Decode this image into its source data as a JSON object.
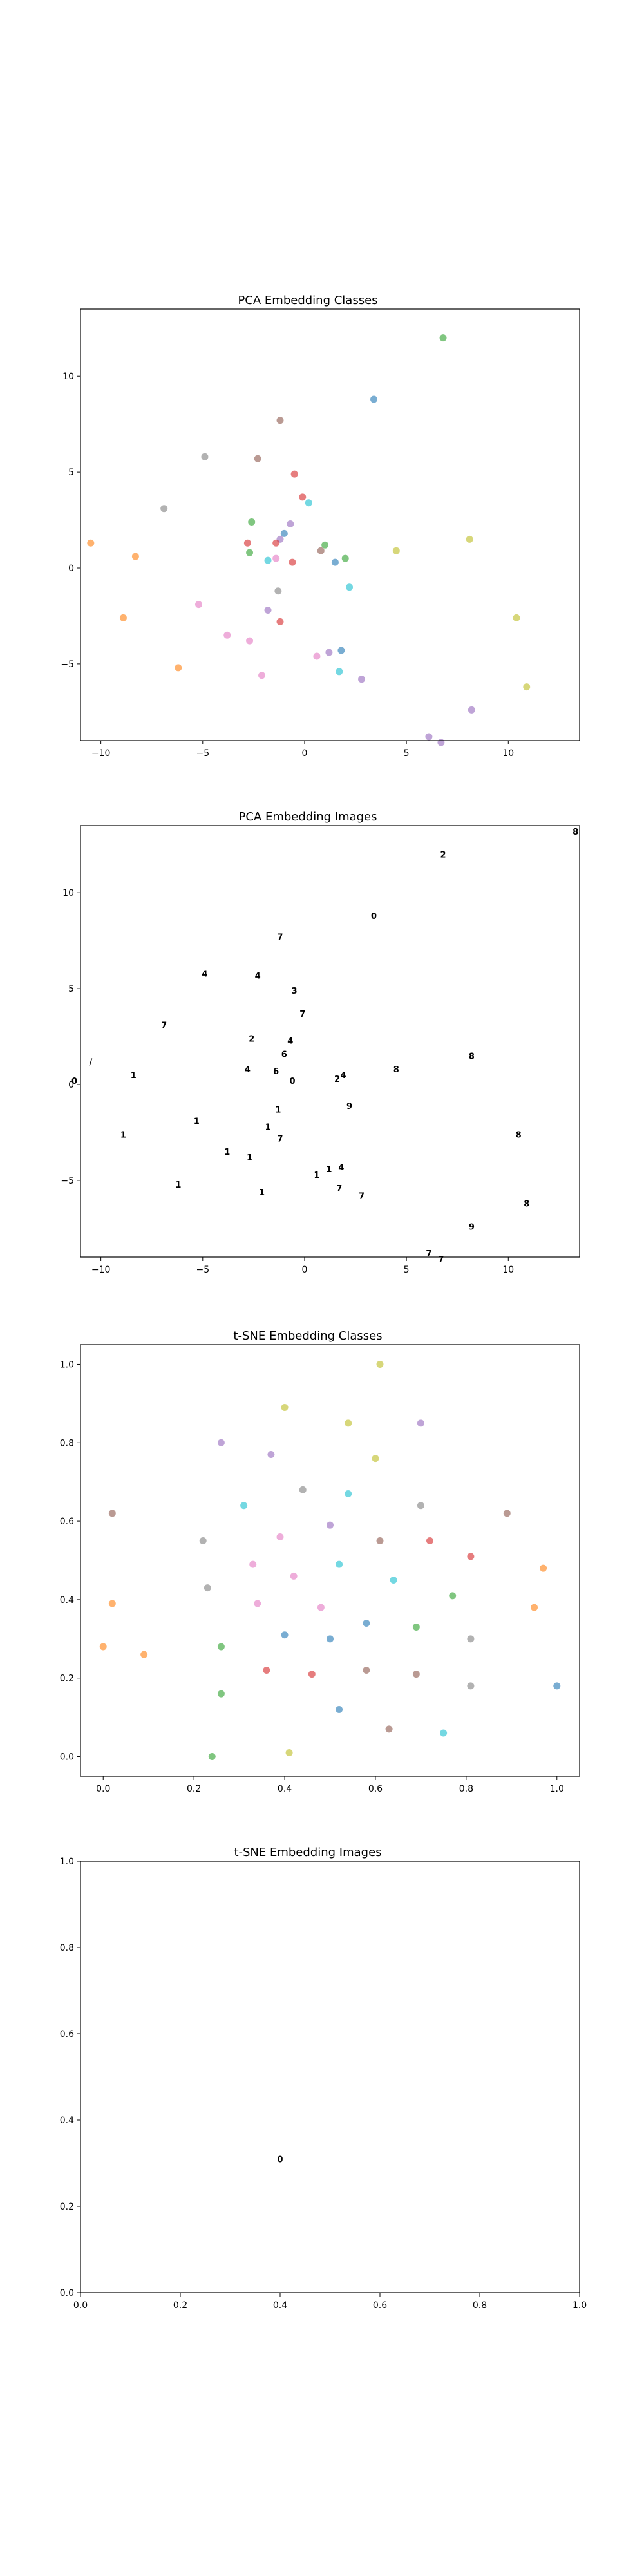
{
  "colors": {
    "blue": "#1f77b4",
    "orange": "#ff7f0e",
    "green": "#2ca02c",
    "red": "#d62728",
    "purple": "#9467bd",
    "brown": "#8c564b",
    "pink": "#e377c2",
    "gray": "#7f7f7f",
    "olive": "#bcbd22",
    "cyan": "#17becf"
  },
  "chart_data": [
    {
      "type": "scatter",
      "title": "PCA Embedding Classes",
      "xlim": [
        -11,
        13.5
      ],
      "ylim": [
        -9,
        13.5
      ],
      "xticks": [
        -10,
        -5,
        0,
        5,
        10
      ],
      "yticks": [
        -5,
        0,
        5,
        10
      ],
      "grid": false,
      "points": [
        {
          "x": 6.8,
          "y": 12.0,
          "c": "green"
        },
        {
          "x": 3.4,
          "y": 8.8,
          "c": "blue"
        },
        {
          "x": -1.2,
          "y": 7.7,
          "c": "brown"
        },
        {
          "x": -4.9,
          "y": 5.8,
          "c": "gray"
        },
        {
          "x": -2.3,
          "y": 5.7,
          "c": "brown"
        },
        {
          "x": -0.5,
          "y": 4.9,
          "c": "red"
        },
        {
          "x": -0.1,
          "y": 3.7,
          "c": "red"
        },
        {
          "x": 0.2,
          "y": 3.4,
          "c": "cyan"
        },
        {
          "x": -6.9,
          "y": 3.1,
          "c": "gray"
        },
        {
          "x": -0.7,
          "y": 2.3,
          "c": "purple"
        },
        {
          "x": -2.6,
          "y": 2.4,
          "c": "green"
        },
        {
          "x": -1.0,
          "y": 1.8,
          "c": "blue"
        },
        {
          "x": -1.2,
          "y": 1.5,
          "c": "purple"
        },
        {
          "x": -1.4,
          "y": 1.3,
          "c": "red"
        },
        {
          "x": -2.8,
          "y": 1.3,
          "c": "red"
        },
        {
          "x": 1.0,
          "y": 1.2,
          "c": "green"
        },
        {
          "x": -10.5,
          "y": 1.3,
          "c": "orange"
        },
        {
          "x": 8.1,
          "y": 1.5,
          "c": "olive"
        },
        {
          "x": 4.5,
          "y": 0.9,
          "c": "olive"
        },
        {
          "x": -2.7,
          "y": 0.8,
          "c": "green"
        },
        {
          "x": 0.8,
          "y": 0.9,
          "c": "brown"
        },
        {
          "x": -8.3,
          "y": 0.6,
          "c": "orange"
        },
        {
          "x": -1.8,
          "y": 0.4,
          "c": "cyan"
        },
        {
          "x": -0.6,
          "y": 0.3,
          "c": "red"
        },
        {
          "x": -1.4,
          "y": 0.5,
          "c": "pink"
        },
        {
          "x": 1.5,
          "y": 0.3,
          "c": "blue"
        },
        {
          "x": 2.0,
          "y": 0.5,
          "c": "green"
        },
        {
          "x": 2.2,
          "y": -1.0,
          "c": "cyan"
        },
        {
          "x": -1.3,
          "y": -1.2,
          "c": "gray"
        },
        {
          "x": -5.2,
          "y": -1.9,
          "c": "pink"
        },
        {
          "x": -1.8,
          "y": -2.2,
          "c": "purple"
        },
        {
          "x": -8.9,
          "y": -2.6,
          "c": "orange"
        },
        {
          "x": 10.4,
          "y": -2.6,
          "c": "olive"
        },
        {
          "x": -1.2,
          "y": -2.8,
          "c": "red"
        },
        {
          "x": -3.8,
          "y": -3.5,
          "c": "pink"
        },
        {
          "x": -2.7,
          "y": -3.8,
          "c": "pink"
        },
        {
          "x": 1.8,
          "y": -4.3,
          "c": "blue"
        },
        {
          "x": 1.2,
          "y": -4.4,
          "c": "purple"
        },
        {
          "x": 0.6,
          "y": -4.6,
          "c": "pink"
        },
        {
          "x": -6.2,
          "y": -5.2,
          "c": "orange"
        },
        {
          "x": 1.7,
          "y": -5.4,
          "c": "cyan"
        },
        {
          "x": -2.1,
          "y": -5.6,
          "c": "pink"
        },
        {
          "x": 2.8,
          "y": -5.8,
          "c": "purple"
        },
        {
          "x": 10.9,
          "y": -6.2,
          "c": "olive"
        },
        {
          "x": 8.2,
          "y": -7.4,
          "c": "purple"
        },
        {
          "x": 6.1,
          "y": -8.8,
          "c": "purple"
        },
        {
          "x": 6.7,
          "y": -9.1,
          "c": "purple"
        }
      ]
    },
    {
      "type": "scatter",
      "title": "PCA Embedding Images",
      "xlim": [
        -11,
        13.5
      ],
      "ylim": [
        -9,
        13.5
      ],
      "xticks": [
        -10,
        -5,
        0,
        5,
        10
      ],
      "yticks": [
        -5,
        0,
        5,
        10
      ],
      "grid": false,
      "points": [
        {
          "x": 6.8,
          "y": 12.0,
          "d": "2"
        },
        {
          "x": 3.4,
          "y": 8.8,
          "d": "0"
        },
        {
          "x": -1.2,
          "y": 7.7,
          "d": "7"
        },
        {
          "x": -4.9,
          "y": 5.8,
          "d": "4"
        },
        {
          "x": -2.3,
          "y": 5.7,
          "d": "4"
        },
        {
          "x": -0.5,
          "y": 4.9,
          "d": "3"
        },
        {
          "x": -0.1,
          "y": 3.7,
          "d": "7"
        },
        {
          "x": -6.9,
          "y": 3.1,
          "d": "7"
        },
        {
          "x": -2.6,
          "y": 2.4,
          "d": "2"
        },
        {
          "x": -0.7,
          "y": 2.3,
          "d": "4"
        },
        {
          "x": -1.0,
          "y": 1.6,
          "d": "6"
        },
        {
          "x": 8.2,
          "y": 1.5,
          "d": "8"
        },
        {
          "x": -10.5,
          "y": 1.2,
          "d": "/"
        },
        {
          "x": 4.5,
          "y": 0.8,
          "d": "8"
        },
        {
          "x": -2.8,
          "y": 0.8,
          "d": "4"
        },
        {
          "x": -1.4,
          "y": 0.7,
          "d": "6"
        },
        {
          "x": -8.4,
          "y": 0.5,
          "d": "1"
        },
        {
          "x": 1.9,
          "y": 0.5,
          "d": "4"
        },
        {
          "x": -0.6,
          "y": 0.2,
          "d": "0"
        },
        {
          "x": 1.6,
          "y": 0.3,
          "d": "2"
        },
        {
          "x": 13.3,
          "y": 13.2,
          "d": "8"
        },
        {
          "x": -11.3,
          "y": 0.2,
          "d": "0"
        },
        {
          "x": 2.2,
          "y": -1.1,
          "d": "9"
        },
        {
          "x": -1.3,
          "y": -1.3,
          "d": "1"
        },
        {
          "x": -5.3,
          "y": -1.9,
          "d": "1"
        },
        {
          "x": -1.8,
          "y": -2.2,
          "d": "1"
        },
        {
          "x": -8.9,
          "y": -2.6,
          "d": "1"
        },
        {
          "x": 10.5,
          "y": -2.6,
          "d": "8"
        },
        {
          "x": -1.2,
          "y": -2.8,
          "d": "7"
        },
        {
          "x": -3.8,
          "y": -3.5,
          "d": "1"
        },
        {
          "x": -2.7,
          "y": -3.8,
          "d": "1"
        },
        {
          "x": 1.8,
          "y": -4.3,
          "d": "4"
        },
        {
          "x": 1.2,
          "y": -4.4,
          "d": "1"
        },
        {
          "x": 0.6,
          "y": -4.7,
          "d": "1"
        },
        {
          "x": -6.2,
          "y": -5.2,
          "d": "1"
        },
        {
          "x": 1.7,
          "y": -5.4,
          "d": "7"
        },
        {
          "x": -2.1,
          "y": -5.6,
          "d": "1"
        },
        {
          "x": 2.8,
          "y": -5.8,
          "d": "7"
        },
        {
          "x": 10.9,
          "y": -6.2,
          "d": "8"
        },
        {
          "x": 8.2,
          "y": -7.4,
          "d": "9"
        },
        {
          "x": 6.1,
          "y": -8.8,
          "d": "7"
        },
        {
          "x": 6.7,
          "y": -9.1,
          "d": "7"
        }
      ]
    },
    {
      "type": "scatter",
      "title": "t-SNE Embedding Classes",
      "xlim": [
        -0.05,
        1.05
      ],
      "ylim": [
        -0.05,
        1.05
      ],
      "xticks": [
        0.0,
        0.2,
        0.4,
        0.6,
        0.8,
        1.0
      ],
      "yticks": [
        0.0,
        0.2,
        0.4,
        0.6,
        0.8,
        1.0
      ],
      "grid": false,
      "points": [
        {
          "x": 0.61,
          "y": 1.0,
          "c": "olive"
        },
        {
          "x": 0.4,
          "y": 0.89,
          "c": "olive"
        },
        {
          "x": 0.54,
          "y": 0.85,
          "c": "olive"
        },
        {
          "x": 0.7,
          "y": 0.85,
          "c": "purple"
        },
        {
          "x": 0.26,
          "y": 0.8,
          "c": "purple"
        },
        {
          "x": 0.37,
          "y": 0.77,
          "c": "purple"
        },
        {
          "x": 0.6,
          "y": 0.76,
          "c": "olive"
        },
        {
          "x": 0.44,
          "y": 0.68,
          "c": "gray"
        },
        {
          "x": 0.54,
          "y": 0.67,
          "c": "cyan"
        },
        {
          "x": 0.31,
          "y": 0.64,
          "c": "cyan"
        },
        {
          "x": 0.7,
          "y": 0.64,
          "c": "gray"
        },
        {
          "x": 0.02,
          "y": 0.62,
          "c": "brown"
        },
        {
          "x": 0.89,
          "y": 0.62,
          "c": "brown"
        },
        {
          "x": 0.5,
          "y": 0.59,
          "c": "purple"
        },
        {
          "x": 0.39,
          "y": 0.56,
          "c": "pink"
        },
        {
          "x": 0.22,
          "y": 0.55,
          "c": "gray"
        },
        {
          "x": 0.61,
          "y": 0.55,
          "c": "brown"
        },
        {
          "x": 0.72,
          "y": 0.55,
          "c": "red"
        },
        {
          "x": 0.81,
          "y": 0.51,
          "c": "red"
        },
        {
          "x": 0.52,
          "y": 0.49,
          "c": "cyan"
        },
        {
          "x": 0.33,
          "y": 0.49,
          "c": "pink"
        },
        {
          "x": 0.97,
          "y": 0.48,
          "c": "orange"
        },
        {
          "x": 0.42,
          "y": 0.46,
          "c": "pink"
        },
        {
          "x": 0.64,
          "y": 0.45,
          "c": "cyan"
        },
        {
          "x": 0.23,
          "y": 0.43,
          "c": "gray"
        },
        {
          "x": 0.77,
          "y": 0.41,
          "c": "green"
        },
        {
          "x": 0.02,
          "y": 0.39,
          "c": "orange"
        },
        {
          "x": 0.34,
          "y": 0.39,
          "c": "pink"
        },
        {
          "x": 0.48,
          "y": 0.38,
          "c": "pink"
        },
        {
          "x": 0.95,
          "y": 0.38,
          "c": "orange"
        },
        {
          "x": 0.58,
          "y": 0.34,
          "c": "blue"
        },
        {
          "x": 0.69,
          "y": 0.33,
          "c": "green"
        },
        {
          "x": 0.4,
          "y": 0.31,
          "c": "blue"
        },
        {
          "x": 0.5,
          "y": 0.3,
          "c": "blue"
        },
        {
          "x": 0.81,
          "y": 0.3,
          "c": "gray"
        },
        {
          "x": -0.0,
          "y": 0.28,
          "c": "orange"
        },
        {
          "x": 0.26,
          "y": 0.28,
          "c": "green"
        },
        {
          "x": 0.09,
          "y": 0.26,
          "c": "orange"
        },
        {
          "x": 0.36,
          "y": 0.22,
          "c": "red"
        },
        {
          "x": 0.46,
          "y": 0.21,
          "c": "red"
        },
        {
          "x": 0.58,
          "y": 0.22,
          "c": "brown"
        },
        {
          "x": 0.69,
          "y": 0.21,
          "c": "brown"
        },
        {
          "x": 0.81,
          "y": 0.18,
          "c": "gray"
        },
        {
          "x": 1.0,
          "y": 0.18,
          "c": "blue"
        },
        {
          "x": 0.26,
          "y": 0.16,
          "c": "green"
        },
        {
          "x": 0.52,
          "y": 0.12,
          "c": "blue"
        },
        {
          "x": 0.63,
          "y": 0.07,
          "c": "brown"
        },
        {
          "x": 0.75,
          "y": 0.06,
          "c": "cyan"
        },
        {
          "x": 0.41,
          "y": 0.01,
          "c": "olive"
        },
        {
          "x": 0.24,
          "y": 0.0,
          "c": "green"
        }
      ]
    },
    {
      "type": "scatter",
      "title": "t-SNE Embedding Images",
      "xlim": [
        0.0,
        1.0
      ],
      "ylim": [
        0.0,
        1.0
      ],
      "xticks": [
        0.0,
        0.2,
        0.4,
        0.6,
        0.8,
        1.0
      ],
      "yticks": [
        0.0,
        0.2,
        0.4,
        0.6,
        0.8,
        1.0
      ],
      "grid": false,
      "points": [
        {
          "x": 0.4,
          "y": 0.31,
          "d": "0"
        }
      ]
    }
  ]
}
